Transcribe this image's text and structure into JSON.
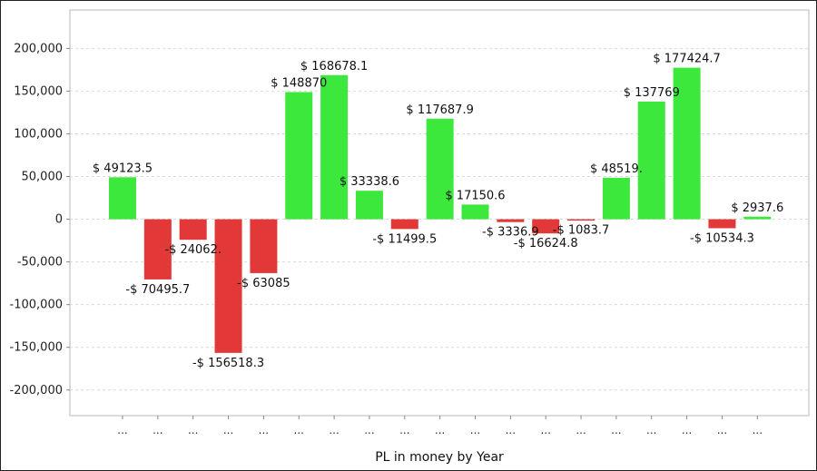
{
  "chart_data": {
    "type": "bar",
    "title": "",
    "xlabel": "PL in money by Year",
    "ylabel": "",
    "ylim": [
      -230000,
      245000
    ],
    "yticks": [
      200000,
      150000,
      100000,
      50000,
      0,
      -50000,
      -100000,
      -150000,
      -200000
    ],
    "ytick_labels": [
      "200,000",
      "150,000",
      "100,000",
      "50,000",
      "0",
      "-50,000",
      "-100,000",
      "-150,000",
      "-200,000"
    ],
    "categories": [
      "...",
      "...",
      "...",
      "...",
      "...",
      "...",
      "...",
      "...",
      "...",
      "...",
      "...",
      "...",
      "...",
      "...",
      "...",
      "...",
      "...",
      "...",
      "..."
    ],
    "values": [
      49123.5,
      -70495.7,
      -24062,
      -156518.3,
      -63085,
      148870,
      168678.1,
      33338.6,
      -11499.5,
      117687.9,
      17150.6,
      -3336.9,
      -16624.8,
      -1083.7,
      48519,
      137769,
      177424.7,
      -10534.3,
      2937.6
    ],
    "data_labels": [
      "$ 49123.5",
      "-$ 70495.7",
      "-$ 24062.",
      "-$ 156518.3",
      "-$ 63085",
      "$ 148870",
      "$ 168678.1",
      "$ 33338.6",
      "-$ 11499.5",
      "$ 117687.9",
      "$ 17150.6",
      "-$ 3336.9",
      "-$ 16624.8",
      "-$ 1083.7",
      "$ 48519.",
      "$ 137769",
      "$ 177424.7",
      "-$ 10534.3",
      "$ 2937.6"
    ],
    "grid": true,
    "legend": "none",
    "colors": {
      "positive": "#3de83d",
      "negative": "#e23838"
    }
  }
}
